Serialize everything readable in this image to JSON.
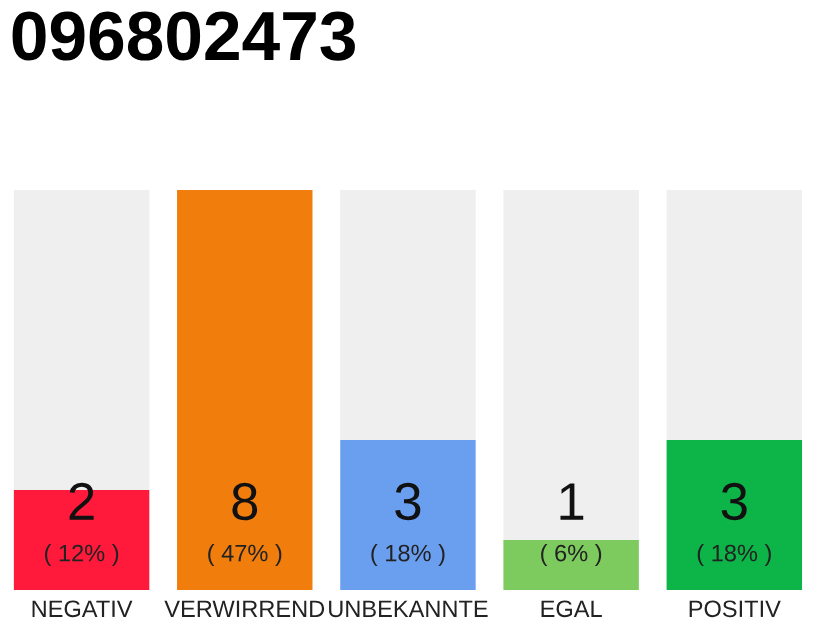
{
  "chart_data": {
    "type": "bar",
    "title": "096802473",
    "categories": [
      "NEGATIV",
      "VERWIRREND",
      "UNBEKANNTE",
      "EGAL",
      "POSITIV"
    ],
    "ylim": [
      0,
      8
    ],
    "tick_labels": "x",
    "grid": false,
    "stacked": true,
    "series": [
      {
        "colors": [
          "#ff1a3c",
          "#f07d0c",
          "#6a9ff0",
          "#7dca5e",
          "#0db447"
        ],
        "values": [
          2,
          8,
          3,
          1,
          3
        ],
        "value_labels": [
          "2",
          "8",
          "3",
          "1",
          "3"
        ]
      },
      {
        "color": "#efefef",
        "values": [
          6,
          0,
          5,
          7,
          5
        ]
      }
    ],
    "annotations": [
      "( 12% )",
      "( 47% )",
      "( 18% )",
      "( 6% )",
      "( 18% )"
    ]
  }
}
